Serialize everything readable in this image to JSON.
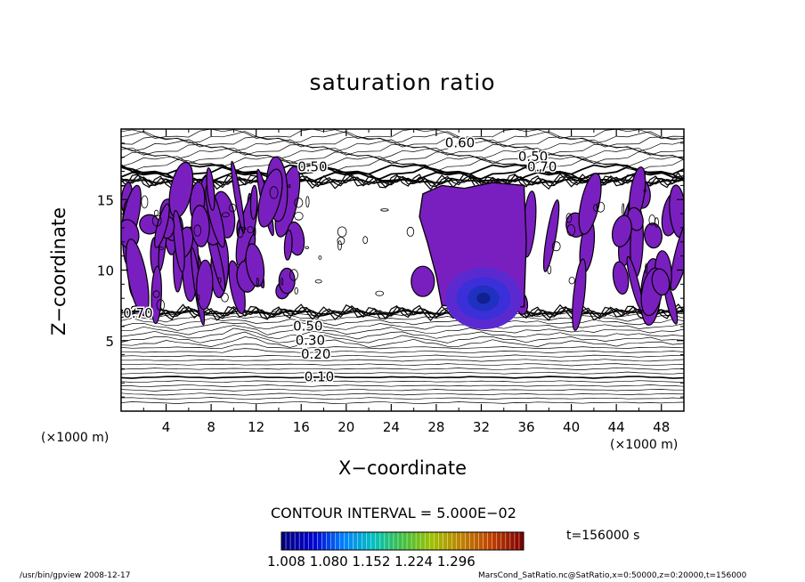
{
  "chart_data": {
    "type": "heatmap",
    "title": "saturation ratio",
    "xlabel": "X−coordinate",
    "ylabel": "Z−coordinate",
    "x_unit": "(×1000 m)",
    "xlim": [
      0,
      50
    ],
    "ylim": [
      0,
      20
    ],
    "x_ticks": [
      4,
      8,
      12,
      16,
      20,
      24,
      28,
      32,
      36,
      40,
      44,
      48
    ],
    "y_ticks": [
      5,
      10,
      15
    ],
    "contour_interval": "CONTOUR INTERVAL = 5.000E−02",
    "contour_labels": [
      {
        "text": "0.10",
        "x": 17.6,
        "z": 2.4
      },
      {
        "text": "0.20",
        "x": 17.3,
        "z": 4.0
      },
      {
        "text": "0.30",
        "x": 16.8,
        "z": 5.0
      },
      {
        "text": "0.50",
        "x": 16.6,
        "z": 6.0
      },
      {
        "text": "0.50",
        "x": 17.0,
        "z": 17.3
      },
      {
        "text": "0.60",
        "x": 30.1,
        "z": 19.0
      },
      {
        "text": "0.50",
        "x": 36.6,
        "z": 18.0
      },
      {
        "text": "0.70",
        "x": 37.4,
        "z": 17.3
      },
      {
        "text": "0.70",
        "x": 1.5,
        "z": 6.9
      }
    ],
    "shaded_regions_min_value": 1.0,
    "colorbar": {
      "min": 1.008,
      "max": 1.296,
      "tick_labels": [
        "1.008",
        "1.080",
        "1.152",
        "1.224",
        "1.296"
      ],
      "colors": [
        "#000080",
        "#0000d0",
        "#0080ff",
        "#00c0c0",
        "#40c040",
        "#a0c000",
        "#c08000",
        "#c04000",
        "#800000"
      ]
    },
    "time": "t=156000 s",
    "grid": false
  },
  "footer": {
    "left": "/usr/bin/gpview  2008-12-17",
    "right": "MarsCond_SatRatio.nc@SatRatio,x=0:50000,z=0:20000,t=156000"
  }
}
